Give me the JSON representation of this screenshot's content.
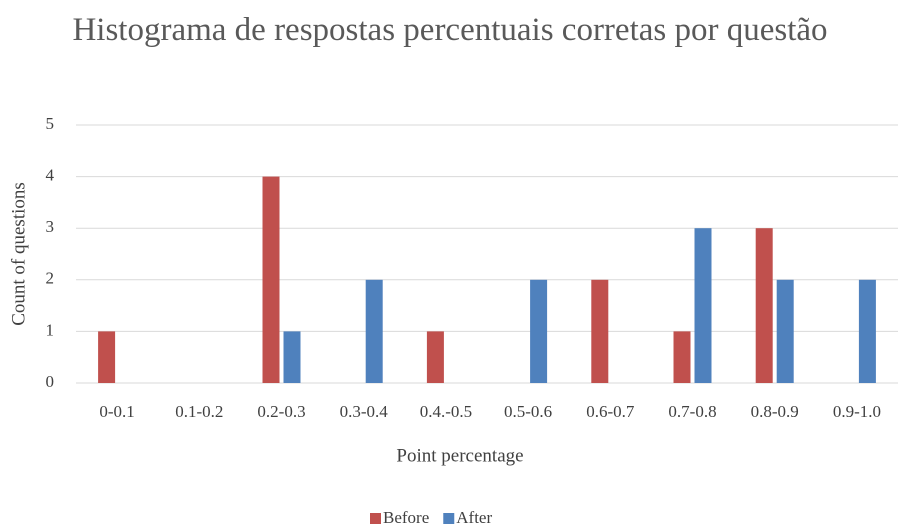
{
  "chart_data": {
    "type": "bar",
    "title": "Histograma de respostas percentuais corretas por questão",
    "x_label": "Point percentage",
    "y_label": "Count of  questions",
    "categories": [
      "0-0.1",
      "0.1-0.2",
      "0.2-0.3",
      "0.3-0.4",
      "0.4.-0.5",
      "0.5-0.6",
      "0.6-0.7",
      "0.7-0.8",
      "0.8-0.9",
      "0.9-1.0"
    ],
    "series": [
      {
        "name": "Before",
        "color": "#c0504d",
        "values": [
          1,
          0,
          4,
          0,
          1,
          0,
          2,
          1,
          3,
          0
        ]
      },
      {
        "name": "After",
        "color": "#4f81bd",
        "values": [
          0,
          0,
          1,
          2,
          0,
          2,
          0,
          3,
          2,
          2
        ]
      }
    ],
    "ylim": [
      0,
      5
    ],
    "yticks": [
      0,
      1,
      2,
      3,
      4,
      5
    ],
    "grid": true,
    "legend": "bottom"
  }
}
